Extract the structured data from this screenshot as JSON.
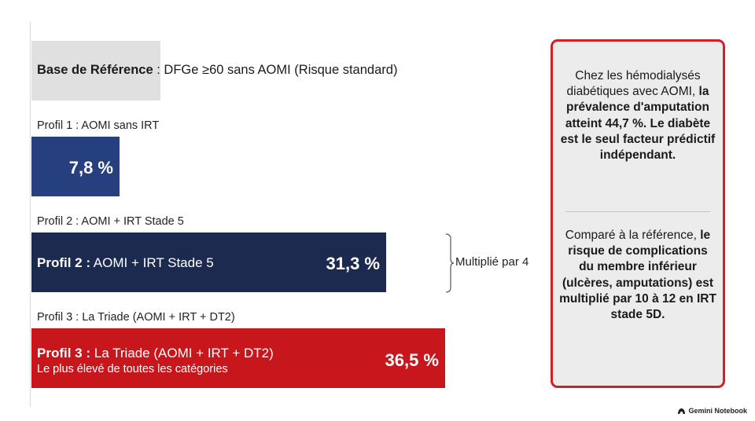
{
  "chart_data": {
    "type": "bar",
    "orientation": "horizontal",
    "baseline": {
      "label_bold": "Base de Référence",
      "label_rest": " : DFGe ≥60 sans AOMI (Risque standard)"
    },
    "profiles": [
      {
        "row_label": "Profil 1 : AOMI sans IRT",
        "value": 7.8,
        "value_label": "7,8 %",
        "color": "#263f7e"
      },
      {
        "row_label": "Profil 2 : AOMI + IRT Stade 5",
        "bar_label_bold": "Profil 2 :",
        "bar_label_rest": " AOMI + IRT Stade 5",
        "value": 31.3,
        "value_label": "31,3 %",
        "color": "#1b2a4e"
      },
      {
        "row_label": "Profil 3 : La Triade (AOMI + IRT + DT2)",
        "bar_label_bold": "Profil 3 :",
        "bar_label_rest": " La Triade (AOMI + IRT + DT2)",
        "bar_sublabel": "Le plus élevé de toutes les catégories",
        "value": 36.5,
        "value_label": "36,5 %",
        "color": "#c8161d"
      }
    ],
    "annotation": "Multiplié par 4",
    "xlim": [
      0,
      41
    ]
  },
  "callout": {
    "border_color": "#d22027",
    "block1": {
      "normal": "Chez les hémodialysés diabétiques avec AOMI, ",
      "bold": "la prévalence d'amputation atteint 44,7 %. Le diabète est le seul facteur prédictif indépendant."
    },
    "block2": {
      "normal": "Comparé à la référence, ",
      "bold": "le risque de complications du membre inférieur (ulcères, amputations) est multiplié par 10 à 12 en IRT stade 5D."
    }
  },
  "branding": {
    "icon": "gemini-notebook-icon",
    "text": "Gemini Notebook"
  }
}
